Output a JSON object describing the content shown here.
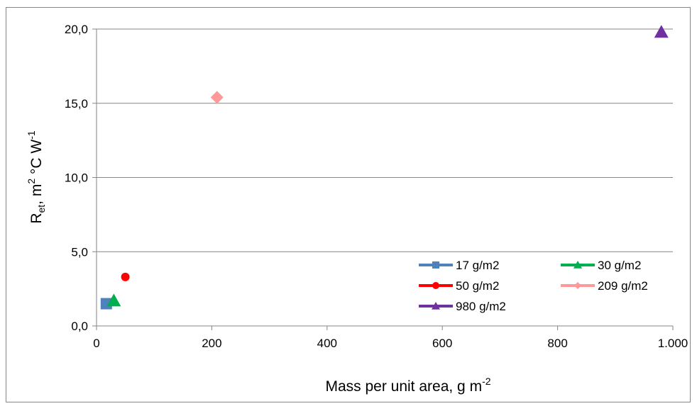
{
  "chart_data": {
    "type": "scatter",
    "title": "",
    "xlabel": {
      "base": "Mass per unit area, g m",
      "sup": "-2"
    },
    "ylabel": {
      "r": "R",
      "r_sub": "et",
      "mid": ", m",
      "sup1": "2",
      "rest": " °C W",
      "sup2": "-1"
    },
    "xlim": [
      0,
      1000
    ],
    "ylim": [
      0,
      20
    ],
    "x_ticks": [
      0,
      200,
      400,
      600,
      800,
      1000
    ],
    "x_tick_labels": [
      "0",
      "200",
      "400",
      "600",
      "800",
      "1.000"
    ],
    "y_ticks": [
      0,
      5,
      10,
      15,
      20
    ],
    "y_tick_labels": [
      "0,0",
      "5,0",
      "10,0",
      "15,0",
      "20,0"
    ],
    "grid": "horizontal",
    "legend_position": "bottom-right",
    "series": [
      {
        "name": "17 g/m2",
        "marker": "square",
        "color": "#4f81bd",
        "x": [
          17
        ],
        "y": [
          1.5
        ]
      },
      {
        "name": "30 g/m2",
        "marker": "triangle",
        "color": "#00b050",
        "x": [
          30
        ],
        "y": [
          1.7
        ]
      },
      {
        "name": "50 g/m2",
        "marker": "circle",
        "color": "#ff0000",
        "x": [
          50
        ],
        "y": [
          3.3
        ]
      },
      {
        "name": "209 g/m2",
        "marker": "diamond",
        "color": "#ff9999",
        "x": [
          209
        ],
        "y": [
          15.4
        ]
      },
      {
        "name": "980 g/m2",
        "marker": "triangle",
        "color": "#7030a0",
        "x": [
          980
        ],
        "y": [
          19.8
        ]
      }
    ]
  }
}
